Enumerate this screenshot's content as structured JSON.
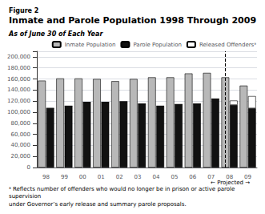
{
  "chart_data": {
    "type": "bar",
    "figure_label": "Figure 2",
    "title": "Inmate and Parole Population 1998 Through 2009",
    "subtitle": "As of June 30 of Each Year",
    "categories": [
      "98",
      "99",
      "00",
      "01",
      "02",
      "03",
      "04",
      "05",
      "06",
      "07",
      "08",
      "09"
    ],
    "series": [
      {
        "name": "Inmate Population",
        "color": "#b8b8b8",
        "values": [
          157000,
          161000,
          161000,
          160000,
          156000,
          160000,
          163000,
          163000,
          170000,
          171000,
          163000,
          148000
        ]
      },
      {
        "name": "Parole Population",
        "color": "#111111",
        "values": [
          107000,
          111000,
          118000,
          118000,
          119000,
          115000,
          111000,
          114000,
          115000,
          124000,
          113000,
          107000
        ]
      },
      {
        "name": "Released Offendersᵃ",
        "color": "#ffffff",
        "stacked": true,
        "values": [
          0,
          0,
          0,
          0,
          0,
          0,
          0,
          0,
          0,
          0,
          8000,
          22000
        ]
      }
    ],
    "ylim": [
      0,
      210000
    ],
    "yticks": [
      0,
      {
        "value": 20000,
        "label": "20,000"
      },
      {
        "value": 40000,
        "label": "40,000"
      },
      {
        "value": 60000,
        "label": "60,000"
      },
      {
        "value": 80000,
        "label": "80,000"
      },
      {
        "value": 100000,
        "label": "100,000"
      },
      {
        "value": 120000,
        "label": "120,000"
      },
      {
        "value": 140000,
        "label": "140,000"
      },
      {
        "value": 160000,
        "label": "160,000"
      },
      {
        "value": 180000,
        "label": "180,000"
      },
      {
        "value": 200000,
        "label": "200,000"
      }
    ],
    "grid": true,
    "legend": "upper right",
    "annotations": [
      {
        "text": "← Projected →",
        "x": "08"
      }
    ],
    "footnotes": [
      "ᵃ Reflects number of offenders who would no longer be in prison or active parole supervision",
      "under Governor’s early release and summary parole proposals."
    ]
  }
}
